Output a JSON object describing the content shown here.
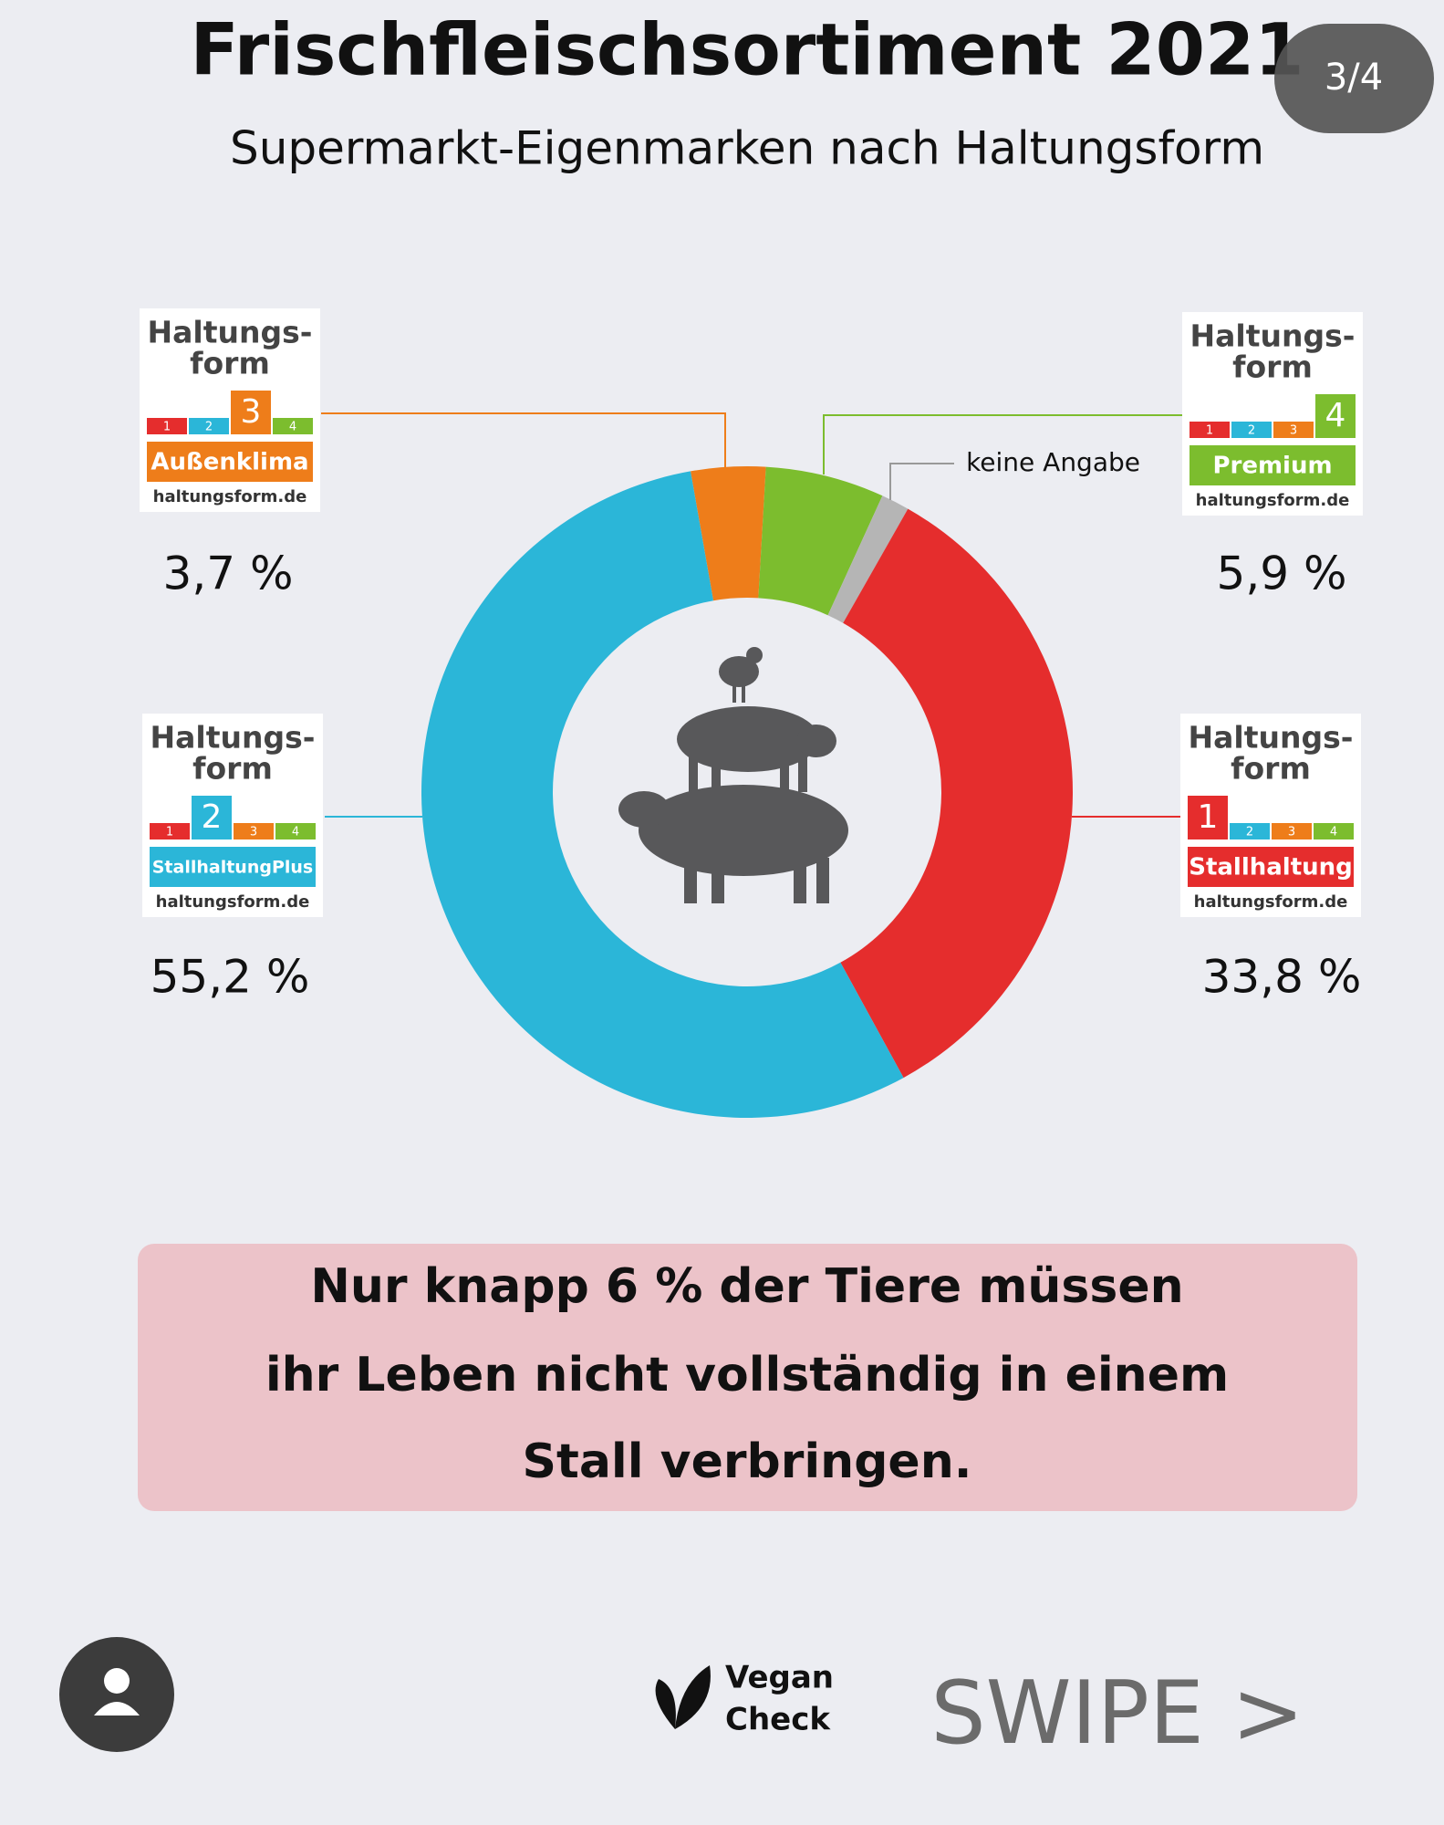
{
  "chart_data": {
    "type": "donut",
    "title": "Frischfleischsortiment 2021",
    "subtitle": "Supermarkt-Eigenmarken nach Haltungsform",
    "categories": [
      "Außenklima",
      "Premium",
      "keine Angabe",
      "Stallhaltung",
      "StallhaltungPlus"
    ],
    "values": [
      3.7,
      5.9,
      1.4,
      33.8,
      55.2
    ],
    "value_labels": [
      "3,7 %",
      "5,9 %",
      null,
      "33,8 %",
      "55,2 %"
    ],
    "colors": [
      "#ee7d1a",
      "#7cbd2e",
      "#b5b5b5",
      "#e52d2d",
      "#2bb6d8"
    ],
    "levels": [
      3,
      4,
      null,
      1,
      2
    ],
    "badge_heading": [
      "Haltungs-",
      "form"
    ],
    "badge_levels": [
      1,
      2,
      3,
      4
    ],
    "badge_url": "haltungsform.de"
  },
  "ui": {
    "page_counter": "3/4",
    "message": [
      "Nur knapp 6 % der Tiere müssen",
      "ihr Leben nicht vollständig in einem",
      "Stall verbringen."
    ],
    "brand": [
      "Vegan",
      "Check"
    ],
    "swipe": "SWIPE >"
  }
}
